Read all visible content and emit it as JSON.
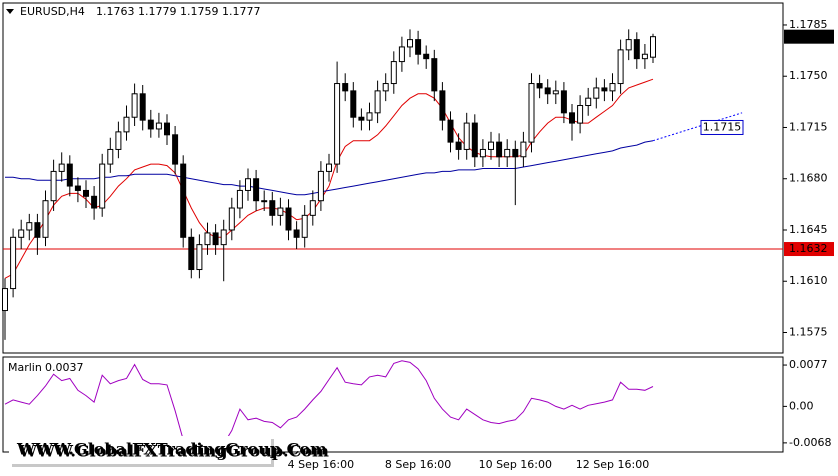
{
  "watermark": "WWW.GlobalFXTradingGroup.Com",
  "chart_data": [
    {
      "type": "candlestick",
      "title": "EURUSD,H4",
      "categories": [
        null,
        null,
        null,
        null,
        null,
        null,
        null,
        null,
        null,
        null,
        null,
        null,
        null,
        null,
        null,
        null,
        null,
        null,
        null,
        null,
        null,
        null,
        null,
        null,
        null,
        null,
        null,
        null,
        null,
        null,
        null,
        null,
        null,
        null,
        null,
        null,
        null,
        null,
        null,
        "4 Sep 16:00",
        null,
        null,
        null,
        null,
        null,
        null,
        null,
        null,
        null,
        null,
        null,
        "8 Sep 16:00",
        null,
        null,
        null,
        null,
        null,
        null,
        null,
        null,
        null,
        null,
        null,
        "10 Sep 16:00",
        null,
        null,
        null,
        null,
        null,
        null,
        null,
        null,
        null,
        null,
        null,
        "12 Sep 16:00",
        null,
        null,
        null,
        null,
        null
      ],
      "open": [
        1.159,
        1.1605,
        1.164,
        1.1645,
        1.165,
        1.164,
        1.1665,
        1.1685,
        1.169,
        1.1675,
        1.1672,
        1.1668,
        1.166,
        1.169,
        1.17,
        1.1712,
        1.1722,
        1.1738,
        1.172,
        1.1714,
        1.1718,
        1.171,
        1.169,
        1.164,
        1.1618,
        1.1635,
        1.1643,
        1.1635,
        1.1645,
        1.166,
        1.1672,
        1.168,
        1.1665,
        1.1665,
        1.1655,
        1.166,
        1.1645,
        1.164,
        1.1655,
        1.1665,
        1.1685,
        1.169,
        1.1745,
        1.174,
        1.1722,
        1.172,
        1.1725,
        1.174,
        1.1745,
        1.176,
        1.177,
        1.1775,
        1.1765,
        1.1762,
        1.174,
        1.172,
        1.1705,
        1.17,
        1.1718,
        1.1695,
        1.17,
        1.1705,
        1.1695,
        1.17,
        1.1695,
        1.1705,
        1.1745,
        1.1742,
        1.1738,
        1.174,
        1.1725,
        1.1718,
        1.173,
        1.1735,
        1.1742,
        1.174,
        1.1745,
        1.1768,
        1.1775,
        1.1762,
        1.1763
      ],
      "high": [
        1.1612,
        1.1646,
        1.1652,
        1.1656,
        1.1656,
        1.1672,
        1.1693,
        1.1698,
        1.1696,
        1.1681,
        1.1679,
        1.1675,
        1.1697,
        1.1708,
        1.1719,
        1.173,
        1.1745,
        1.1744,
        1.1727,
        1.1725,
        1.1724,
        1.1716,
        1.1696,
        1.1646,
        1.1642,
        1.165,
        1.1649,
        1.1652,
        1.1667,
        1.1679,
        1.1687,
        1.1686,
        1.1672,
        1.1671,
        1.1667,
        1.1666,
        1.1651,
        1.1662,
        1.1672,
        1.1692,
        1.1697,
        1.176,
        1.1752,
        1.1746,
        1.1728,
        1.1732,
        1.1747,
        1.1752,
        1.1767,
        1.1777,
        1.1782,
        1.1781,
        1.1771,
        1.1768,
        1.1746,
        1.1726,
        1.1711,
        1.1725,
        1.1724,
        1.1707,
        1.1712,
        1.1711,
        1.1707,
        1.1706,
        1.1712,
        1.1752,
        1.1751,
        1.1748,
        1.1747,
        1.1746,
        1.1731,
        1.1737,
        1.1742,
        1.1749,
        1.1748,
        1.1752,
        1.1775,
        1.1782,
        1.178,
        1.1772,
        1.1779
      ],
      "low": [
        1.157,
        1.1599,
        1.1632,
        1.1638,
        1.1628,
        1.1634,
        1.1658,
        1.1678,
        1.1668,
        1.1664,
        1.166,
        1.1652,
        1.1654,
        1.1684,
        1.1694,
        1.1706,
        1.1716,
        1.1713,
        1.1708,
        1.1708,
        1.1703,
        1.1683,
        1.1633,
        1.1612,
        1.1612,
        1.1628,
        1.1628,
        1.161,
        1.1638,
        1.1653,
        1.1665,
        1.1658,
        1.1658,
        1.1648,
        1.1648,
        1.1638,
        1.1632,
        1.1633,
        1.1648,
        1.1658,
        1.1678,
        1.1684,
        1.1733,
        1.1715,
        1.1713,
        1.1713,
        1.1718,
        1.1733,
        1.1738,
        1.1753,
        1.1763,
        1.1758,
        1.1755,
        1.1733,
        1.1713,
        1.1698,
        1.1693,
        1.1693,
        1.1688,
        1.1688,
        1.1693,
        1.1688,
        1.1688,
        1.1662,
        1.1688,
        1.1698,
        1.1735,
        1.1731,
        1.1731,
        1.1718,
        1.1706,
        1.1711,
        1.1723,
        1.1728,
        1.1733,
        1.1733,
        1.1738,
        1.1761,
        1.1755,
        1.1755,
        1.1759
      ],
      "close": [
        1.1605,
        1.164,
        1.1645,
        1.165,
        1.164,
        1.1665,
        1.1685,
        1.169,
        1.1675,
        1.1672,
        1.1668,
        1.166,
        1.169,
        1.17,
        1.1712,
        1.1722,
        1.1738,
        1.172,
        1.1714,
        1.1718,
        1.171,
        1.169,
        1.164,
        1.1618,
        1.1635,
        1.1643,
        1.1635,
        1.1645,
        1.166,
        1.1672,
        1.168,
        1.1665,
        1.1665,
        1.1655,
        1.166,
        1.1645,
        1.164,
        1.1655,
        1.1665,
        1.1685,
        1.169,
        1.1745,
        1.174,
        1.1722,
        1.172,
        1.1725,
        1.174,
        1.1745,
        1.176,
        1.177,
        1.1775,
        1.1765,
        1.1762,
        1.174,
        1.172,
        1.1705,
        1.17,
        1.1718,
        1.1695,
        1.17,
        1.1705,
        1.1695,
        1.17,
        1.1695,
        1.1705,
        1.1745,
        1.1742,
        1.1738,
        1.174,
        1.1725,
        1.1718,
        1.173,
        1.1735,
        1.1742,
        1.174,
        1.1745,
        1.1768,
        1.1775,
        1.1762,
        1.1765,
        1.1777
      ],
      "up_color": "#ffffff",
      "down_color": "#000000",
      "series": [
        {
          "color": "#e00000",
          "values": [
            1.1612,
            1.1615,
            1.1625,
            1.1635,
            1.1643,
            1.1652,
            1.1662,
            1.1668,
            1.167,
            1.167,
            1.1666,
            1.166,
            1.1662,
            1.1668,
            1.1675,
            1.168,
            1.1686,
            1.1688,
            1.169,
            1.169,
            1.1689,
            1.1684,
            1.1672,
            1.166,
            1.165,
            1.1643,
            1.164,
            1.164,
            1.1645,
            1.165,
            1.1655,
            1.1658,
            1.166,
            1.166,
            1.1659,
            1.1656,
            1.1652,
            1.1653,
            1.1658,
            1.1666,
            1.1675,
            1.1692,
            1.1702,
            1.1706,
            1.1706,
            1.1706,
            1.171,
            1.1716,
            1.1723,
            1.173,
            1.1735,
            1.1738,
            1.1738,
            1.1735,
            1.1728,
            1.1718,
            1.1708,
            1.1702,
            1.1698,
            1.1696,
            1.1695,
            1.1695,
            1.1695,
            1.1695,
            1.1696,
            1.1705,
            1.1712,
            1.1718,
            1.1722,
            1.1722,
            1.172,
            1.1718,
            1.1718,
            1.1722,
            1.1726,
            1.173,
            1.1737,
            1.1742,
            1.1744,
            1.1746,
            1.1748
          ]
        },
        {
          "color": "#0000a0",
          "values": [
            1.1681,
            1.1681,
            1.168,
            1.168,
            1.1679,
            1.1679,
            1.1679,
            1.1679,
            1.168,
            1.168,
            1.168,
            1.168,
            1.1681,
            1.1681,
            1.1682,
            1.1682,
            1.1683,
            1.1683,
            1.1683,
            1.1683,
            1.1683,
            1.1682,
            1.1681,
            1.168,
            1.1679,
            1.1678,
            1.1677,
            1.1676,
            1.1676,
            1.1675,
            1.1675,
            1.1674,
            1.1673,
            1.1672,
            1.1671,
            1.167,
            1.1669,
            1.1669,
            1.167,
            1.1671,
            1.1672,
            1.1673,
            1.1674,
            1.1675,
            1.1676,
            1.1677,
            1.1678,
            1.1679,
            1.168,
            1.1681,
            1.1682,
            1.1683,
            1.1684,
            1.1684,
            1.1685,
            1.1685,
            1.1686,
            1.1686,
            1.1686,
            1.1687,
            1.1687,
            1.1687,
            1.1687,
            1.1687,
            1.1688,
            1.1689,
            1.169,
            1.1691,
            1.1692,
            1.1693,
            1.1694,
            1.1695,
            1.1696,
            1.1697,
            1.1698,
            1.1699,
            1.1701,
            1.1702,
            1.1703,
            1.1705,
            1.1706
          ]
        },
        {
          "color": "#0000ff",
          "x": [
            80,
            91
          ],
          "values": [
            1.1706,
            1.1725
          ],
          "dashed": true
        }
      ],
      "hline": {
        "value": 1.1632,
        "color": "#e00000"
      },
      "marker": {
        "value": 1.1715,
        "color": "#0000cc"
      },
      "ylim": [
        1.1561,
        1.18
      ],
      "yticks": [
        1.1785,
        {
          "value": 1.175,
          "label": "1.1750"
        },
        1.1715,
        {
          "value": 1.168,
          "label": "1.1680"
        },
        1.1645,
        {
          "value": 1.161,
          "label": "1.1610"
        },
        1.1575
      ]
    },
    {
      "type": "line",
      "title": "Marlin",
      "color": "#a000c0",
      "values": [
        0.0004,
        0.0012,
        0.0008,
        0.0004,
        0.002,
        0.0038,
        0.006,
        0.0048,
        0.0052,
        0.003,
        0.002,
        0.0008,
        0.0058,
        0.0042,
        0.0048,
        0.0052,
        0.0078,
        0.005,
        0.0042,
        0.0042,
        0.004,
        -0.0008,
        -0.0062,
        -0.008,
        -0.0078,
        -0.0078,
        -0.008,
        -0.007,
        -0.0045,
        -0.0005,
        -0.0025,
        -0.0022,
        -0.0028,
        -0.003,
        -0.004,
        -0.0025,
        -0.002,
        -0.0005,
        0.0012,
        0.0028,
        0.005,
        0.0072,
        0.0045,
        0.0042,
        0.004,
        0.0055,
        0.0058,
        0.0055,
        0.008,
        0.0085,
        0.0082,
        0.007,
        0.0048,
        0.0015,
        -0.0005,
        -0.002,
        -0.0025,
        -0.0005,
        -0.0015,
        -0.0025,
        -0.003,
        -0.0032,
        -0.0028,
        -0.0025,
        -0.001,
        0.0015,
        0.0012,
        0.0008,
        0,
        -0.0005,
        0.0002,
        -0.0005,
        0.0002,
        0.0005,
        0.0008,
        0.0012,
        0.0045,
        0.0032,
        0.0032,
        0.003,
        0.0037
      ],
      "ylim": [
        -0.0085,
        0.0092
      ],
      "yticks": [
        0.0077,
        {
          "value": 0,
          "label": "0.00"
        },
        -0.0068
      ]
    }
  ]
}
